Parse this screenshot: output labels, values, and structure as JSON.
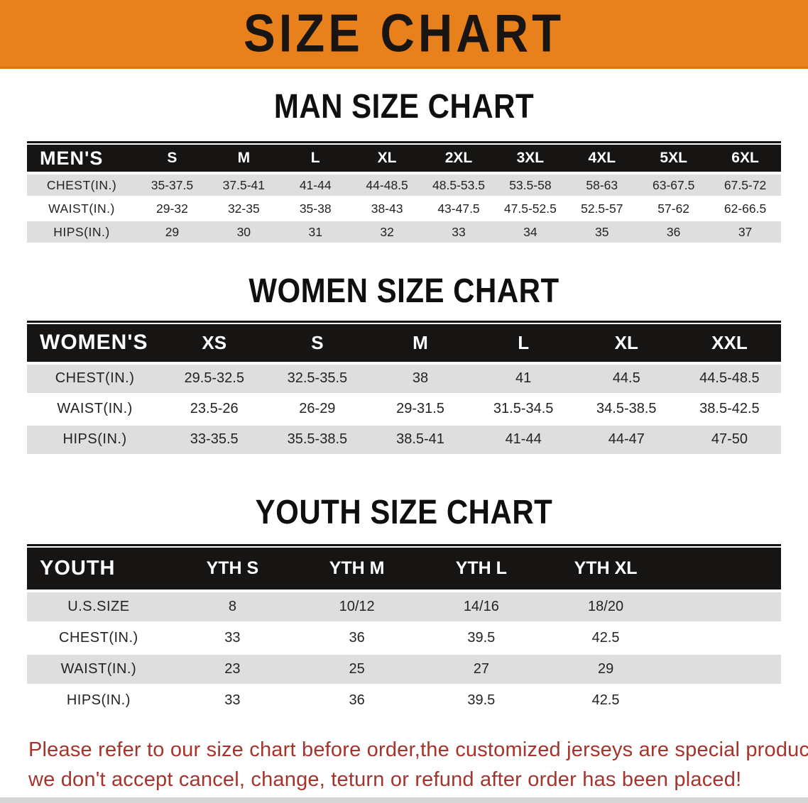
{
  "banner": {
    "title": "SIZE CHART",
    "background_color": "#E8811B",
    "text_color": "#181512"
  },
  "colors": {
    "table_header_bg": "#171513",
    "table_header_text": "#FFFFFF",
    "row_stripe": "#DEDEDE",
    "note_text": "#A5342C"
  },
  "sections": [
    {
      "heading": "MAN SIZE CHART",
      "table": {
        "corner_label": "MEN'S",
        "columns": [
          "S",
          "M",
          "L",
          "XL",
          "2XL",
          "3XL",
          "4XL",
          "5XL",
          "6XL"
        ],
        "rows": [
          {
            "label": "CHEST(IN.)",
            "values": [
              "35-37.5",
              "37.5-41",
              "41-44",
              "44-48.5",
              "48.5-53.5",
              "53.5-58",
              "58-63",
              "63-67.5",
              "67.5-72"
            ]
          },
          {
            "label": "WAIST(IN.)",
            "values": [
              "29-32",
              "32-35",
              "35-38",
              "38-43",
              "43-47.5",
              "47.5-52.5",
              "52.5-57",
              "57-62",
              "62-66.5"
            ]
          },
          {
            "label": "HIPS(IN.)",
            "values": [
              "29",
              "30",
              "31",
              "32",
              "33",
              "34",
              "35",
              "36",
              "37"
            ]
          }
        ]
      }
    },
    {
      "heading": "WOMEN SIZE CHART",
      "table": {
        "corner_label": "WOMEN'S",
        "columns": [
          "XS",
          "S",
          "M",
          "L",
          "XL",
          "XXL"
        ],
        "rows": [
          {
            "label": "CHEST(IN.)",
            "values": [
              "29.5-32.5",
              "32.5-35.5",
              "38",
              "41",
              "44.5",
              "44.5-48.5"
            ]
          },
          {
            "label": "WAIST(IN.)",
            "values": [
              "23.5-26",
              "26-29",
              "29-31.5",
              "31.5-34.5",
              "34.5-38.5",
              "38.5-42.5"
            ]
          },
          {
            "label": "HIPS(IN.)",
            "values": [
              "33-35.5",
              "35.5-38.5",
              "38.5-41",
              "41-44",
              "44-47",
              "47-50"
            ]
          }
        ]
      }
    },
    {
      "heading": "YOUTH SIZE CHART",
      "table": {
        "corner_label": "YOUTH",
        "columns": [
          "YTH S",
          "YTH M",
          "YTH L",
          "YTH XL",
          ""
        ],
        "rows": [
          {
            "label": "U.S.SIZE",
            "values": [
              "8",
              "10/12",
              "14/16",
              "18/20",
              ""
            ]
          },
          {
            "label": "CHEST(IN.)",
            "values": [
              "33",
              "36",
              "39.5",
              "42.5",
              ""
            ]
          },
          {
            "label": "WAIST(IN.)",
            "values": [
              "23",
              "25",
              "27",
              "29",
              ""
            ]
          },
          {
            "label": "HIPS(IN.)",
            "values": [
              "33",
              "36",
              "39.5",
              "42.5",
              ""
            ]
          }
        ]
      }
    }
  ],
  "footer": {
    "lines": [
      "Please refer to our size chart before order,the customized jerseys are special products,",
      "we don't accept cancel, change, teturn or refund after order has been placed!"
    ]
  }
}
